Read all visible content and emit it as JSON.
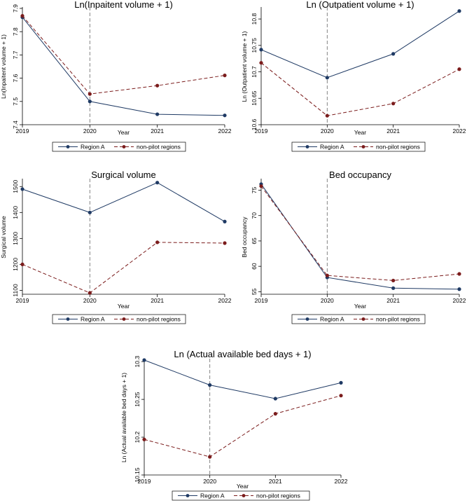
{
  "chart_data": [
    {
      "id": "inpatient",
      "type": "line",
      "title": "Ln(Inpaitent volume + 1)",
      "xlabel": "Year",
      "ylabel": "Ln(Inpaitent volume + 1)",
      "categories": [
        "2019",
        "2020",
        "2021",
        "2022"
      ],
      "ylim": [
        7.4,
        7.9
      ],
      "yticks": [
        7.4,
        7.5,
        7.6,
        7.7,
        7.8,
        7.9
      ],
      "ytick_labels": [
        "7.4",
        "7.5",
        "7.6",
        "7.7",
        "7.8",
        "7.9"
      ],
      "vline_at": "2020",
      "series": [
        {
          "name": "Region A",
          "values": [
            7.862,
            7.5,
            7.445,
            7.44
          ]
        },
        {
          "name": "non-pilot regions",
          "values": [
            7.868,
            7.532,
            7.568,
            7.612
          ]
        }
      ]
    },
    {
      "id": "outpatient",
      "type": "line",
      "title": "Ln (Outpatient volume + 1)",
      "xlabel": "Year",
      "ylabel": "Ln (Outpatient volume + 1)",
      "categories": [
        "2019",
        "2020",
        "2021",
        "2022"
      ],
      "ylim": [
        10.6,
        10.82
      ],
      "yticks": [
        10.6,
        10.65,
        10.7,
        10.75,
        10.8
      ],
      "ytick_labels": [
        "10.6",
        "10.65",
        "10.7",
        "10.75",
        "10.8"
      ],
      "vline_at": "2020",
      "series": [
        {
          "name": "Region A",
          "values": [
            10.742,
            10.689,
            10.734,
            10.815
          ]
        },
        {
          "name": "non-pilot regions",
          "values": [
            10.717,
            10.617,
            10.64,
            10.705
          ]
        }
      ]
    },
    {
      "id": "surgical",
      "type": "line",
      "title": "Surgical volume",
      "xlabel": "Year",
      "ylabel": "Surgical volume",
      "categories": [
        "2019",
        "2020",
        "2021",
        "2022"
      ],
      "ylim": [
        1085,
        1525
      ],
      "yticks": [
        1100,
        1200,
        1300,
        1400,
        1500
      ],
      "ytick_labels": [
        "1100",
        "1200",
        "1300",
        "1400",
        "1500"
      ],
      "vline_at": "2020",
      "series": [
        {
          "name": "Region A",
          "values": [
            1490,
            1400,
            1515,
            1365
          ]
        },
        {
          "name": "non-pilot regions",
          "values": [
            1200,
            1090,
            1285,
            1282
          ]
        }
      ]
    },
    {
      "id": "bed-occupancy",
      "type": "line",
      "title": "Bed occupancy",
      "xlabel": "Year",
      "ylabel": "Bed occupancy",
      "categories": [
        "2019",
        "2020",
        "2021",
        "2022"
      ],
      "ylim": [
        54.5,
        77
      ],
      "yticks": [
        55,
        60,
        65,
        70,
        75
      ],
      "ytick_labels": [
        "55",
        "60",
        "65",
        "70",
        "75"
      ],
      "vline_at": "2020",
      "series": [
        {
          "name": "Region A",
          "values": [
            76.2,
            57.8,
            55.7,
            55.5
          ]
        },
        {
          "name": "non-pilot regions",
          "values": [
            75.8,
            58.2,
            57.2,
            58.5
          ]
        }
      ]
    },
    {
      "id": "bed-days",
      "type": "line",
      "title": "Ln (Actual available bed days + 1)",
      "xlabel": "Year",
      "ylabel": "Ln (Actual available bed days + 1)",
      "categories": [
        "2019",
        "2020",
        "2021",
        "2022"
      ],
      "ylim": [
        10.15,
        10.302
      ],
      "yticks": [
        10.15,
        10.2,
        10.25,
        10.3
      ],
      "ytick_labels": [
        "10.15",
        "10.2",
        "10.25",
        "10.3"
      ],
      "vline_at": "2020",
      "series": [
        {
          "name": "Region A",
          "values": [
            10.302,
            10.269,
            10.251,
            10.272
          ]
        },
        {
          "name": "non-pilot regions",
          "values": [
            10.197,
            10.174,
            10.231,
            10.255
          ]
        }
      ]
    }
  ],
  "legend": {
    "items": [
      "Region A",
      "non-pilot regions"
    ]
  },
  "colors": {
    "region_a": "#1f3a64",
    "non_pilot": "#7b1c1c",
    "vline": "#777777",
    "axis": "#000000"
  }
}
